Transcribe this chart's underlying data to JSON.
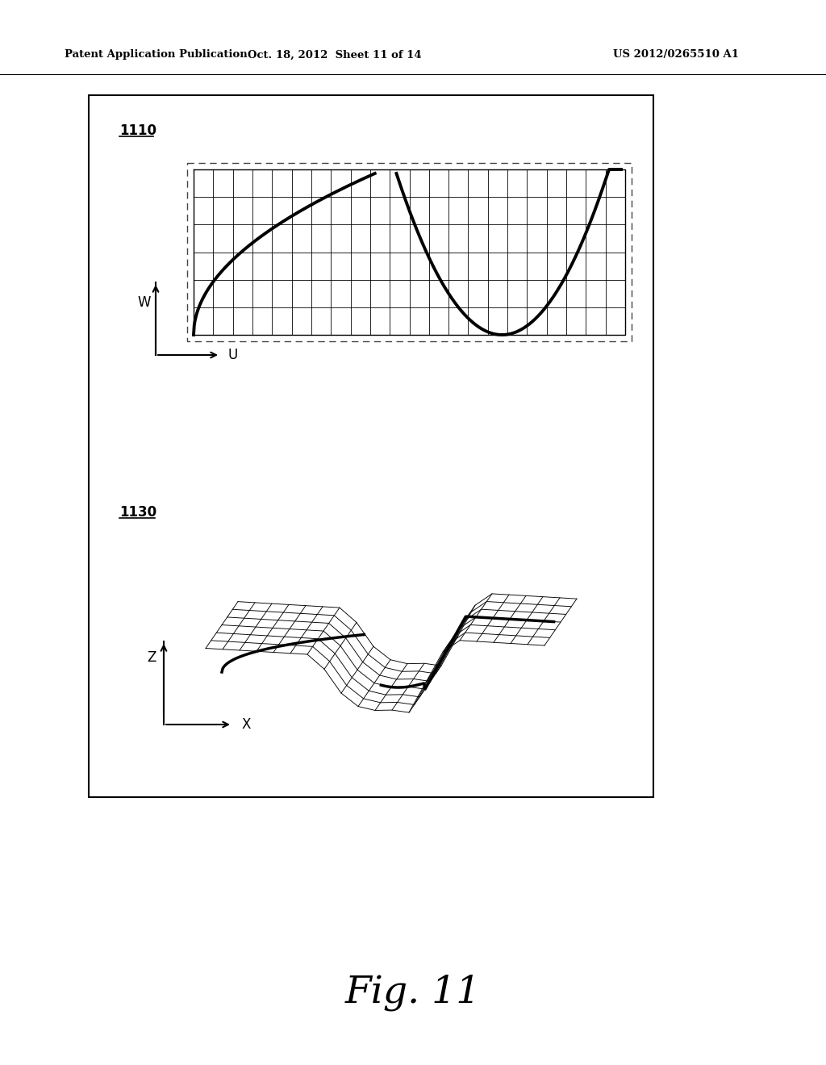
{
  "title": "Fig. 11",
  "header_left": "Patent Application Publication",
  "header_mid": "Oct. 18, 2012  Sheet 11 of 14",
  "header_right": "US 2012/0265510 A1",
  "label_1110": "1110",
  "label_1130": "1130",
  "bg_color": "#ffffff"
}
